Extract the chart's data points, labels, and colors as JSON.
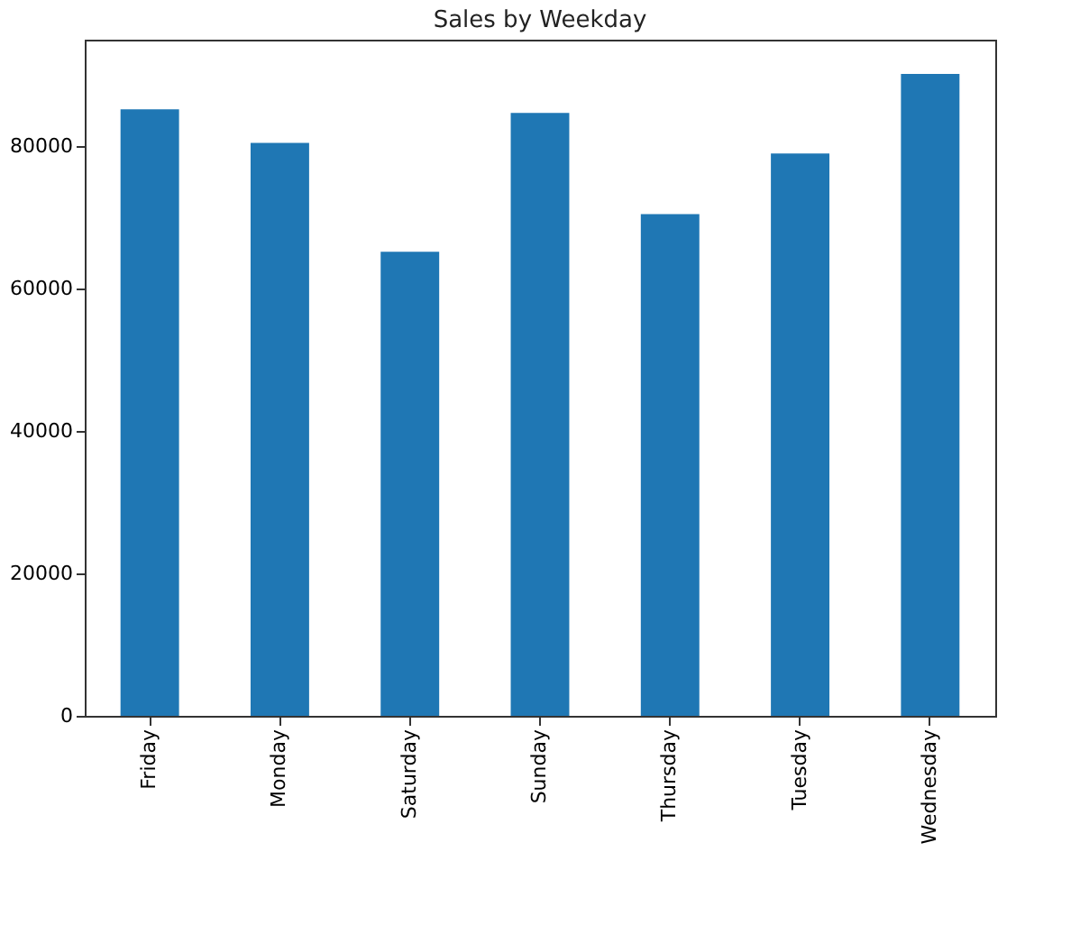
{
  "chart_data": {
    "type": "bar",
    "title": "Sales by Weekday",
    "categories": [
      "Friday",
      "Monday",
      "Saturday",
      "Sunday",
      "Thursday",
      "Tuesday",
      "Wednesday"
    ],
    "values": [
      85200,
      80500,
      65200,
      84700,
      70500,
      79000,
      90200
    ],
    "color": "#1f77b4",
    "ylim": [
      0,
      95000
    ],
    "yticks": [
      0,
      20000,
      40000,
      60000,
      80000
    ],
    "grid": false
  }
}
